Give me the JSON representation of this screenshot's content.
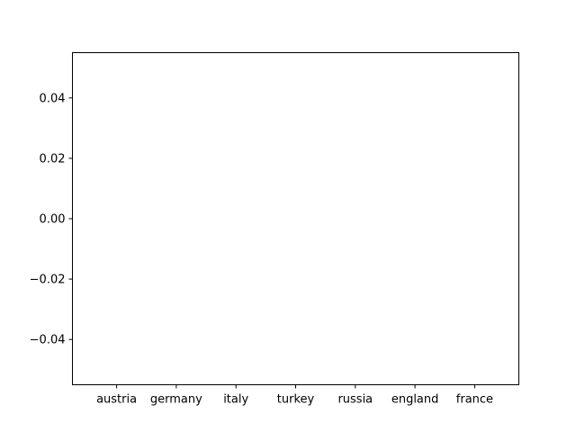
{
  "chart_data": {
    "type": "bar",
    "categories": [
      "austria",
      "germany",
      "italy",
      "turkey",
      "russia",
      "england",
      "france"
    ],
    "values": [
      0,
      0,
      0,
      0,
      0,
      0,
      0
    ],
    "yticks": [
      "0.04",
      "0.02",
      "0.00",
      "−0.02",
      "−0.04"
    ],
    "ytick_values": [
      0.04,
      0.02,
      0.0,
      -0.02,
      -0.04
    ],
    "ylim": [
      -0.055,
      0.055
    ],
    "grid": false,
    "title": "",
    "xlabel": "",
    "ylabel": "",
    "colors": {
      "axes": "#000000",
      "bar": "#1f77b4",
      "background": "#ffffff"
    }
  }
}
